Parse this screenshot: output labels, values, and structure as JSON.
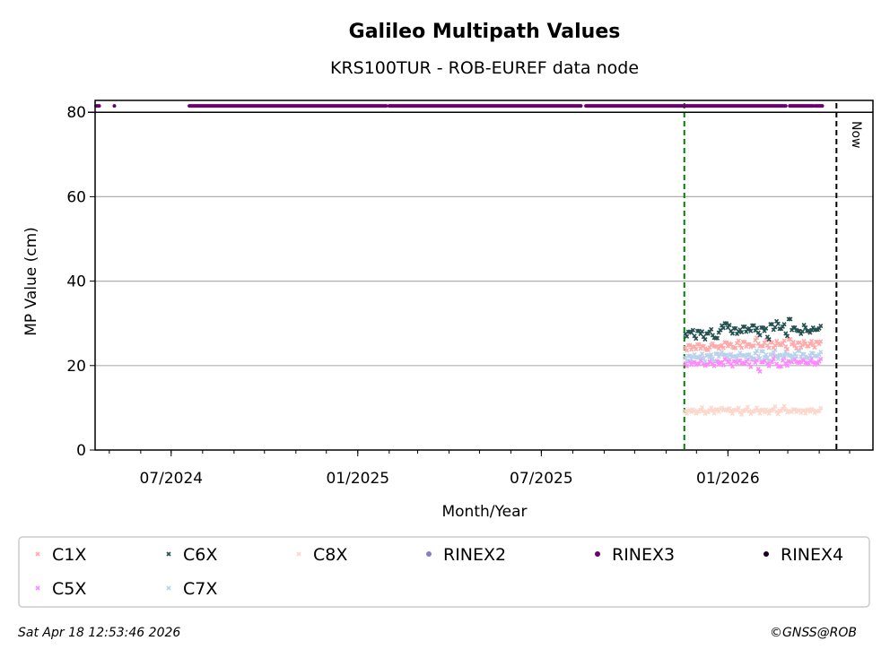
{
  "chart_data": {
    "type": "scatter",
    "title": "Galileo Multipath Values",
    "subtitle": "KRS100TUR - ROB-EUREF data node",
    "xlabel": "Month/Year",
    "ylabel": "MP Value (cm)",
    "xlim": [
      "2024-04-17",
      "2026-05-24"
    ],
    "ylim": [
      0,
      82.8
    ],
    "yticks": [
      0,
      20,
      40,
      60,
      80
    ],
    "xticks": [
      {
        "date": "2024-07-01",
        "label": "07/2024"
      },
      {
        "date": "2025-01-01",
        "label": "01/2025"
      },
      {
        "date": "2025-07-01",
        "label": "07/2025"
      },
      {
        "date": "2026-01-01",
        "label": "01/2026"
      }
    ],
    "grid": "y",
    "now_label": "Now",
    "now_date": "2026-04-18",
    "marker_date": "2025-11-19",
    "series_start": "2025-11-20",
    "series_step_days": 3,
    "series": [
      {
        "name": "C1X",
        "color": "#ffaaaa",
        "marker": "x",
        "values": [
          24.2,
          24.8,
          23.8,
          24.5,
          25,
          24,
          24.6,
          23.7,
          24.3,
          25.2,
          24.5,
          24,
          24.8,
          25.5,
          24.6,
          25,
          24.2,
          25.3,
          24.8,
          25.6,
          24.5,
          25,
          24.7,
          26,
          25.2,
          24.6,
          25.4,
          24.8,
          25.5,
          24.2,
          25.8,
          24.9,
          25.3,
          24.5,
          26.2,
          25,
          24.7,
          25.4,
          24.3,
          25.8,
          24.6,
          25.2,
          24.9,
          25.6,
          25.1
        ]
      },
      {
        "name": "C6X",
        "color": "#255050",
        "marker": "x",
        "values": [
          27.5,
          28,
          27.8,
          27,
          28.2,
          27.5,
          26.8,
          27.6,
          28,
          27.2,
          26.5,
          27.8,
          29.5,
          30,
          29,
          28.2,
          28.8,
          27.5,
          28.5,
          29.2,
          28,
          28.8,
          29.5,
          28.3,
          27.8,
          29,
          28.2,
          26.8,
          29.8,
          28.5,
          30.5,
          28.7,
          29.2,
          27.6,
          31,
          28.4,
          29,
          28.2,
          27.5,
          29.6,
          28.2,
          27.8,
          29,
          28.5,
          28.8
        ]
      },
      {
        "name": "C8X",
        "color": "#fcd8cc",
        "marker": "x",
        "values": [
          9.2,
          9.4,
          9,
          9.3,
          9.1,
          9.5,
          9.2,
          9,
          9.4,
          9.3,
          9.6,
          9.1,
          10,
          9.6,
          9.3,
          9.2,
          9.5,
          9.4,
          9,
          9.3,
          9.6,
          9.2,
          9.1,
          9.4,
          9.3,
          9.5,
          9,
          9.2,
          9.4,
          9.7,
          9.1,
          9.3,
          9.8,
          9.5,
          9.2,
          9,
          9.6,
          9.4,
          8.8,
          9.3,
          9.5,
          9.1,
          9.4,
          9.2,
          9.3
        ]
      },
      {
        "name": "RINEX2",
        "color": "#8a7fc4",
        "marker": "dot",
        "values": []
      },
      {
        "name": "RINEX3",
        "color": "#6a006a",
        "marker": "dot",
        "value": 81.5,
        "ranges": [
          [
            "2024-04-18",
            "2024-04-21"
          ],
          [
            "2024-05-06",
            "2024-05-06"
          ],
          [
            "2024-07-19",
            "2025-01-29"
          ],
          [
            "2025-02-01",
            "2025-08-09"
          ],
          [
            "2025-08-14",
            "2026-02-27"
          ],
          [
            "2026-03-03",
            "2026-03-26"
          ],
          [
            "2026-03-28",
            "2026-04-04"
          ]
        ]
      },
      {
        "name": "RINEX4",
        "color": "#1a0022",
        "marker": "dot",
        "values": []
      },
      {
        "name": "C5X",
        "color": "#ff88ff",
        "marker": "x",
        "values": [
          20.5,
          21,
          20.2,
          20.8,
          20.4,
          21.2,
          20.6,
          20.3,
          20.9,
          20.5,
          21,
          20.2,
          20.7,
          21.5,
          20.8,
          20.4,
          21,
          20.6,
          21.2,
          20.5,
          20.9,
          20.3,
          21.4,
          20.7,
          19.2,
          20.8,
          21.1,
          20.5,
          20.9,
          21.6,
          20.4,
          19.8,
          21.2,
          20.6,
          21,
          20.8,
          21.5,
          20.7,
          20.9,
          21.3,
          20.5,
          21.1,
          20.8,
          20.6,
          21
        ]
      },
      {
        "name": "C7X",
        "color": "#b8d2ec",
        "marker": "x",
        "values": [
          21.8,
          22.3,
          21.5,
          22.6,
          21.9,
          22.2,
          21.6,
          22.4,
          22,
          21.7,
          22.8,
          22.1,
          23.2,
          22.5,
          21.9,
          22.7,
          22.2,
          21.8,
          23,
          22.4,
          22,
          22.6,
          21.7,
          22.9,
          22.3,
          23.4,
          22,
          21.8,
          22.6,
          23.1,
          22.2,
          22.5,
          21.9,
          23.3,
          22.4,
          21.6,
          22.8,
          23.5,
          22.1,
          22.7,
          21.8,
          22.4,
          22.9,
          22.2,
          22.6
        ]
      }
    ]
  },
  "footer": {
    "timestamp": "Sat Apr 18 12:53:46 2026",
    "credit": "©GNSS@ROB"
  }
}
